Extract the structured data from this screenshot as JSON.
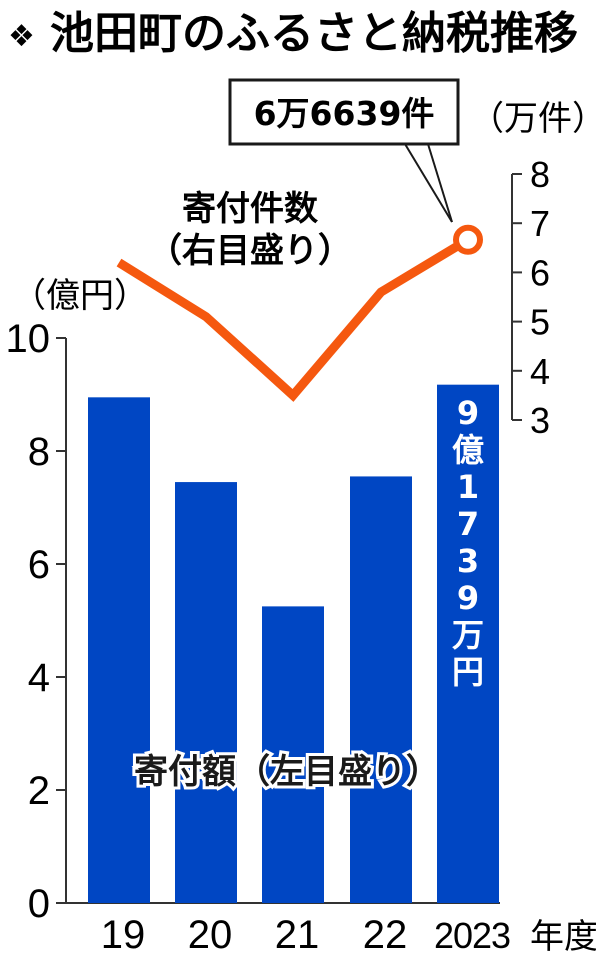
{
  "title": "池田町のふるさと納税推移",
  "title_marker": "❖",
  "colors": {
    "bar": "#0046c3",
    "line": "#f5580f",
    "text": "#1a1a1a",
    "axis": "#333333"
  },
  "chart_data": {
    "type": "bar",
    "title": "池田町のふるさと納税推移",
    "categories": [
      "19",
      "20",
      "21",
      "22",
      "2023"
    ],
    "x_suffix": "年度",
    "left_unit": "（億円）",
    "right_unit": "（万件）",
    "ylim_left": [
      0,
      10
    ],
    "ylim_right": [
      3,
      8
    ],
    "left_ticks": [
      "0",
      "2",
      "4",
      "6",
      "8",
      "10"
    ],
    "right_ticks": [
      "3",
      "4",
      "5",
      "6",
      "7",
      "8"
    ],
    "grid": false,
    "series": [
      {
        "name": "寄付額（左目盛り）",
        "axis": "left",
        "type": "bar",
        "values": [
          8.95,
          7.45,
          5.25,
          7.55,
          9.1739
        ]
      },
      {
        "name": "寄付件数（右目盛り）",
        "name_lines": [
          "寄付件数",
          "（右目盛り）"
        ],
        "axis": "right",
        "type": "line",
        "values": [
          6.2,
          5.1,
          3.5,
          5.6,
          6.6639
        ]
      }
    ],
    "annotations": {
      "last_count_callout": "6万6639件",
      "last_amount_label": [
        "9",
        "億",
        "1",
        "7",
        "3",
        "9",
        "万",
        "円"
      ]
    }
  }
}
